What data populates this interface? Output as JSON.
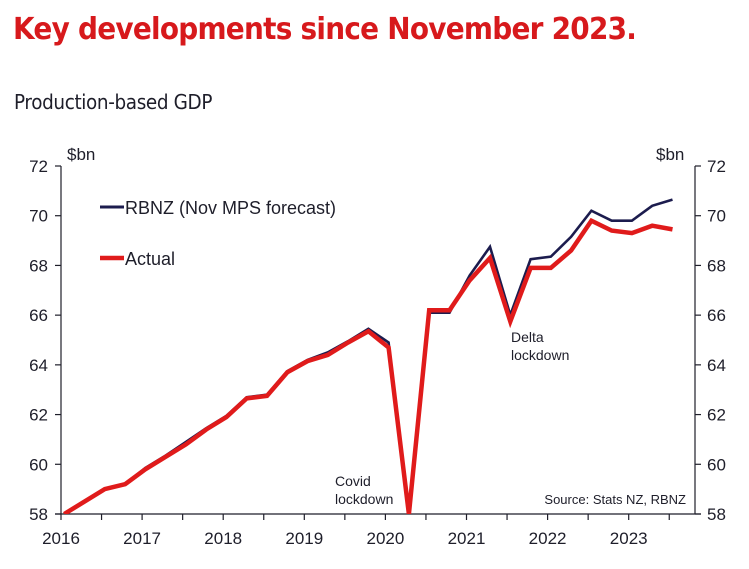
{
  "header": {
    "title": "Key developments since November 2023.",
    "subtitle": "Production-based GDP"
  },
  "colors": {
    "title": "#d7191c",
    "rbnz": "#1c1c4e",
    "actual": "#e01b1b",
    "text": "#1e1e2a"
  },
  "chart_data": {
    "type": "line",
    "title": "Production-based GDP",
    "ylabel_left": "$bn",
    "ylabel_right": "$bn",
    "xlabel": "",
    "ylim": [
      58,
      72
    ],
    "yticks": [
      58,
      60,
      62,
      64,
      66,
      68,
      70,
      72
    ],
    "xlim": [
      2016.0,
      2023.9
    ],
    "xticks": [
      "2016",
      "2017",
      "2018",
      "2019",
      "2020",
      "2021",
      "2022",
      "2023"
    ],
    "grid": false,
    "legend_position": "top-left",
    "x": [
      "2016Q1",
      "2016Q2",
      "2016Q3",
      "2016Q4",
      "2017Q1",
      "2017Q2",
      "2017Q3",
      "2017Q4",
      "2018Q1",
      "2018Q2",
      "2018Q3",
      "2018Q4",
      "2019Q1",
      "2019Q2",
      "2019Q3",
      "2019Q4",
      "2020Q1",
      "2020Q2",
      "2020Q3",
      "2020Q4",
      "2021Q1",
      "2021Q2",
      "2021Q3",
      "2021Q4",
      "2022Q1",
      "2022Q2",
      "2022Q3",
      "2022Q4",
      "2023Q1",
      "2023Q2",
      "2023Q3"
    ],
    "series": [
      {
        "name": "RBNZ (Nov MPS forecast)",
        "color": "#1c1c4e",
        "values": [
          58.0,
          58.5,
          59.0,
          59.2,
          59.85,
          60.35,
          60.9,
          61.45,
          61.95,
          62.7,
          62.8,
          63.75,
          64.2,
          64.5,
          64.95,
          65.45,
          64.9,
          58.0,
          66.1,
          66.1,
          67.6,
          68.75,
          66.0,
          68.25,
          68.35,
          69.15,
          70.2,
          69.8,
          69.8,
          70.4,
          70.65
        ]
      },
      {
        "name": "Actual",
        "color": "#e01b1b",
        "values": [
          58.0,
          58.5,
          59.0,
          59.2,
          59.8,
          60.3,
          60.8,
          61.4,
          61.9,
          62.65,
          62.75,
          63.7,
          64.15,
          64.4,
          64.9,
          65.35,
          64.7,
          58.0,
          66.2,
          66.2,
          67.4,
          68.3,
          65.75,
          67.9,
          67.9,
          68.6,
          69.8,
          69.4,
          69.3,
          69.6,
          69.45
        ]
      }
    ],
    "annotations": [
      {
        "text": [
          "Covid",
          "lockdown"
        ],
        "x": "2020Q2"
      },
      {
        "text": [
          "Delta",
          "lockdown"
        ],
        "x": "2021Q3"
      }
    ],
    "source": "Source: Stats NZ, RBNZ"
  }
}
